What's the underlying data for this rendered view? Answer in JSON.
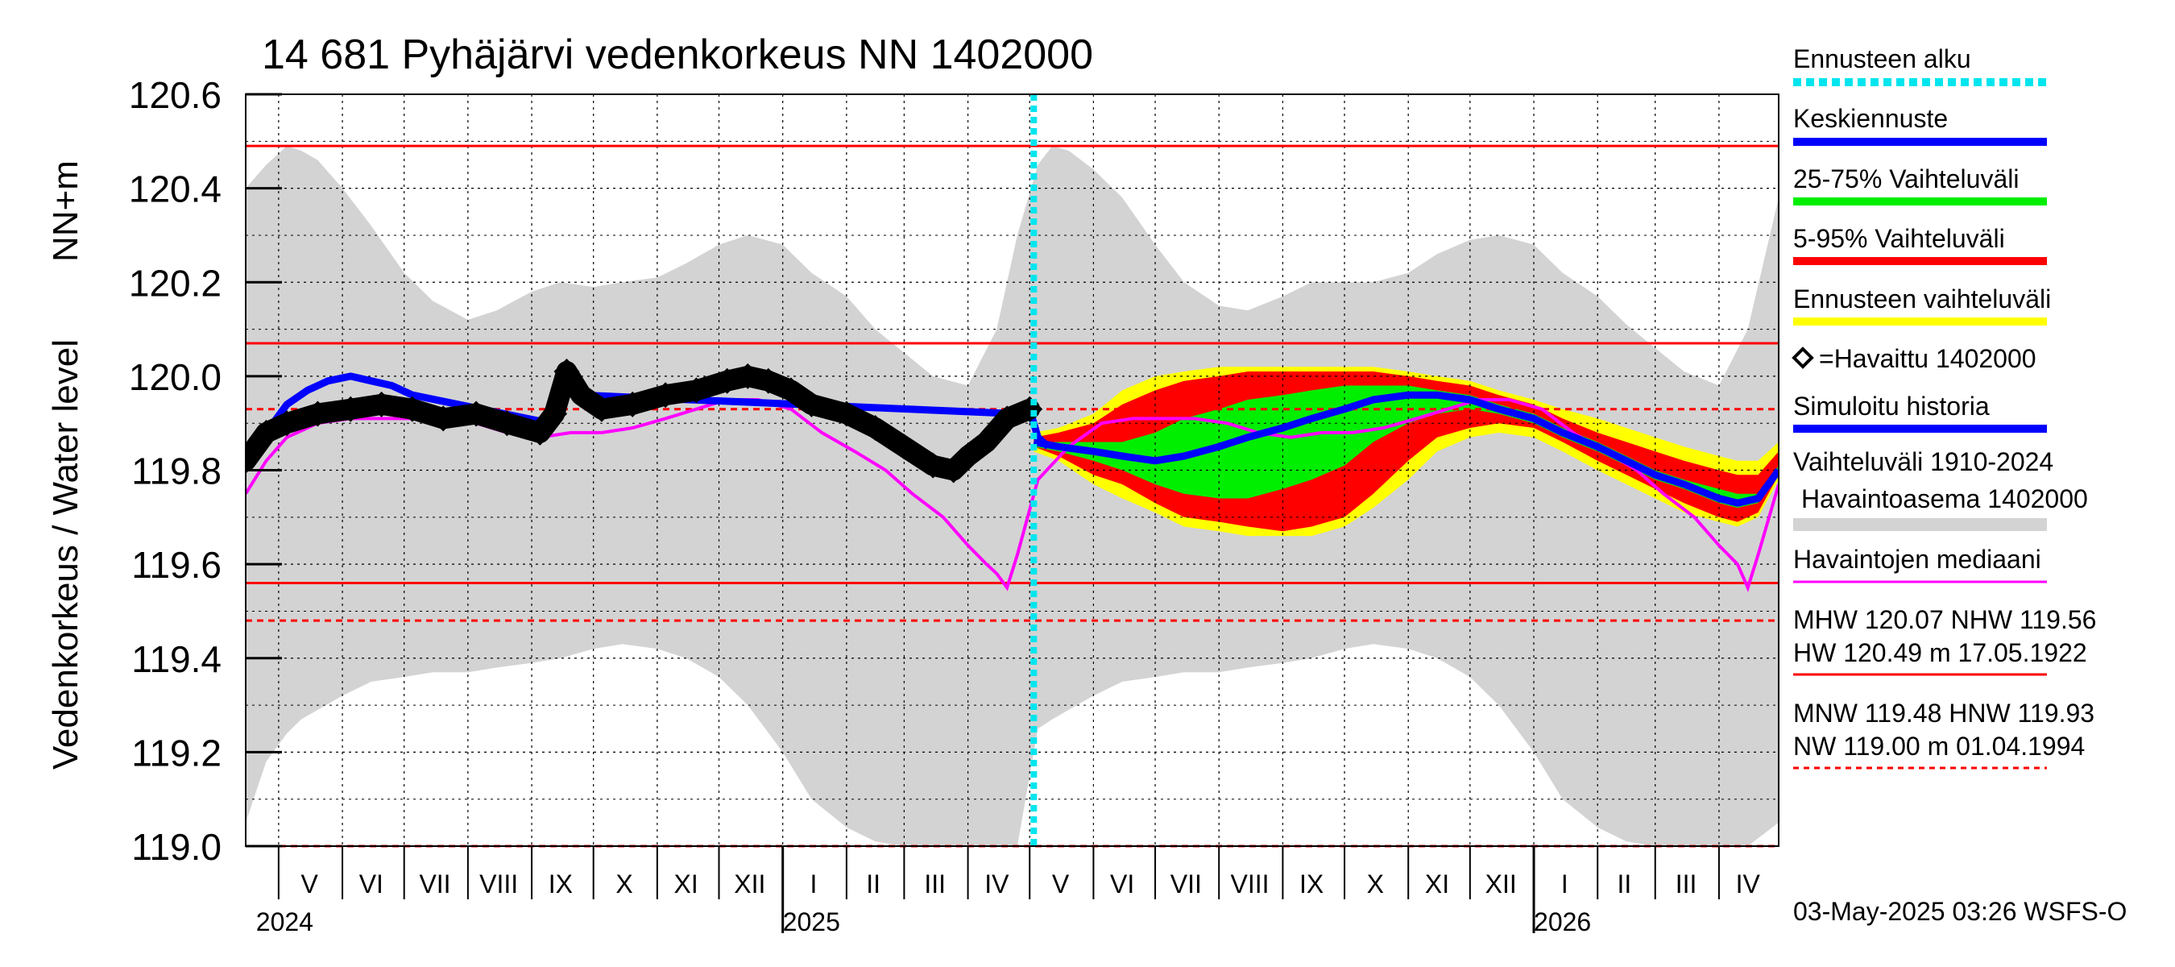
{
  "chart_data": {
    "type": "area",
    "title": "14 681 Pyhäjärvi vedenkorkeus NN 1402000",
    "ylabel_left": "Vedenkorkeus / Water level",
    "ylabel_unit": "NN+m",
    "ylim": [
      119.0,
      120.6
    ],
    "yticks": [
      "120.6",
      "120.4",
      "120.2",
      "120.0",
      "119.8",
      "119.6",
      "119.4",
      "119.2",
      "119.0"
    ],
    "ytick_values": [
      120.6,
      120.4,
      120.2,
      120.0,
      119.8,
      119.6,
      119.4,
      119.2,
      119.0
    ],
    "x_start": "2024-04-15",
    "x_end": "2026-04-30",
    "forecast_start": "2025-05-03",
    "month_labels": [
      {
        "label": "V",
        "mid": "2024-05-16"
      },
      {
        "label": "VI",
        "mid": "2024-06-15"
      },
      {
        "label": "VII",
        "mid": "2024-07-16"
      },
      {
        "label": "VIII",
        "mid": "2024-08-16"
      },
      {
        "label": "IX",
        "mid": "2024-09-15"
      },
      {
        "label": "X",
        "mid": "2024-10-16"
      },
      {
        "label": "XI",
        "mid": "2024-11-15"
      },
      {
        "label": "XII",
        "mid": "2024-12-16"
      },
      {
        "label": "I",
        "mid": "2025-01-16"
      },
      {
        "label": "II",
        "mid": "2025-02-14"
      },
      {
        "label": "III",
        "mid": "2025-03-16"
      },
      {
        "label": "IV",
        "mid": "2025-04-15"
      },
      {
        "label": "V",
        "mid": "2025-05-16"
      },
      {
        "label": "VI",
        "mid": "2025-06-15"
      },
      {
        "label": "VII",
        "mid": "2025-07-16"
      },
      {
        "label": "VIII",
        "mid": "2025-08-16"
      },
      {
        "label": "IX",
        "mid": "2025-09-15"
      },
      {
        "label": "X",
        "mid": "2025-10-16"
      },
      {
        "label": "XI",
        "mid": "2025-11-15"
      },
      {
        "label": "XII",
        "mid": "2025-12-16"
      },
      {
        "label": "I",
        "mid": "2026-01-16"
      },
      {
        "label": "II",
        "mid": "2026-02-14"
      },
      {
        "label": "III",
        "mid": "2026-03-16"
      },
      {
        "label": "IV",
        "mid": "2026-04-15"
      }
    ],
    "month_boundaries": [
      "2024-05-01",
      "2024-06-01",
      "2024-07-01",
      "2024-08-01",
      "2024-09-01",
      "2024-10-01",
      "2024-11-01",
      "2024-12-01",
      "2025-01-01",
      "2025-02-01",
      "2025-03-01",
      "2025-04-01",
      "2025-05-01",
      "2025-06-01",
      "2025-07-01",
      "2025-08-01",
      "2025-09-01",
      "2025-10-01",
      "2025-11-01",
      "2025-12-01",
      "2026-01-01",
      "2026-02-01",
      "2026-03-01",
      "2026-04-01"
    ],
    "year_labels": [
      {
        "label": "2024",
        "date": "2024-04-20"
      },
      {
        "label": "2025",
        "date": "2025-01-01"
      },
      {
        "label": "2026",
        "date": "2026-01-01"
      }
    ],
    "year_boundaries": [
      "2025-01-01",
      "2026-01-01"
    ],
    "reference_lines": [
      {
        "name": "HW",
        "value": 120.49,
        "style": "solid"
      },
      {
        "name": "MHW",
        "value": 120.07,
        "style": "solid"
      },
      {
        "name": "HNW",
        "value": 119.93,
        "style": "dashed"
      },
      {
        "name": "NHW",
        "value": 119.56,
        "style": "solid"
      },
      {
        "name": "MNW",
        "value": 119.48,
        "style": "dashed"
      },
      {
        "name": "NW",
        "value": 119.0,
        "style": "dashed"
      }
    ],
    "history_band": {
      "x": [
        "2024-04-15",
        "2024-04-25",
        "2024-05-05",
        "2024-05-12",
        "2024-05-20",
        "2024-06-01",
        "2024-06-15",
        "2024-07-01",
        "2024-07-15",
        "2024-08-01",
        "2024-08-15",
        "2024-09-01",
        "2024-09-15",
        "2024-10-01",
        "2024-10-15",
        "2024-11-01",
        "2024-11-15",
        "2024-12-01",
        "2024-12-15",
        "2025-01-01",
        "2025-01-15",
        "2025-02-01",
        "2025-02-15",
        "2025-03-01",
        "2025-03-15",
        "2025-04-01",
        "2025-04-15",
        "2025-04-25",
        "2025-05-05",
        "2025-05-12",
        "2025-05-20",
        "2025-06-01",
        "2025-06-15",
        "2025-07-01",
        "2025-07-15",
        "2025-08-01",
        "2025-08-15",
        "2025-09-01",
        "2025-09-15",
        "2025-10-01",
        "2025-10-15",
        "2025-11-01",
        "2025-11-15",
        "2025-12-01",
        "2025-12-15",
        "2026-01-01",
        "2026-01-15",
        "2026-02-01",
        "2026-02-15",
        "2026-03-01",
        "2026-03-15",
        "2026-04-01",
        "2026-04-15",
        "2026-04-30"
      ],
      "upper": [
        120.4,
        120.45,
        120.49,
        120.48,
        120.46,
        120.4,
        120.32,
        120.22,
        120.16,
        120.12,
        120.14,
        120.18,
        120.2,
        120.19,
        120.2,
        120.21,
        120.24,
        120.28,
        120.3,
        120.28,
        120.22,
        120.17,
        120.1,
        120.05,
        120.0,
        119.98,
        120.1,
        120.3,
        120.45,
        120.49,
        120.48,
        120.44,
        120.38,
        120.28,
        120.2,
        120.15,
        120.14,
        120.17,
        120.2,
        120.2,
        120.2,
        120.22,
        120.26,
        120.29,
        120.3,
        120.28,
        120.22,
        120.17,
        120.11,
        120.06,
        120.01,
        119.98,
        120.1,
        120.38
      ],
      "lower": [
        119.05,
        119.18,
        119.24,
        119.27,
        119.29,
        119.32,
        119.35,
        119.36,
        119.37,
        119.37,
        119.38,
        119.39,
        119.4,
        119.42,
        119.43,
        119.42,
        119.4,
        119.36,
        119.3,
        119.2,
        119.1,
        119.04,
        119.01,
        119.0,
        119.0,
        119.0,
        119.0,
        119.0,
        119.25,
        119.27,
        119.29,
        119.32,
        119.35,
        119.36,
        119.37,
        119.37,
        119.38,
        119.39,
        119.4,
        119.42,
        119.43,
        119.42,
        119.4,
        119.36,
        119.3,
        119.2,
        119.1,
        119.04,
        119.01,
        119.0,
        119.0,
        119.0,
        119.0,
        119.05
      ]
    },
    "forecast_bands": {
      "x": [
        "2025-05-03",
        "2025-05-15",
        "2025-06-01",
        "2025-06-15",
        "2025-07-01",
        "2025-07-15",
        "2025-08-01",
        "2025-08-15",
        "2025-09-01",
        "2025-09-15",
        "2025-10-01",
        "2025-10-15",
        "2025-11-01",
        "2025-11-15",
        "2025-12-01",
        "2025-12-15",
        "2026-01-01",
        "2026-01-15",
        "2026-02-01",
        "2026-02-15",
        "2026-03-01",
        "2026-03-15",
        "2026-04-01",
        "2026-04-10",
        "2026-04-20",
        "2026-04-30"
      ],
      "p0": [
        119.84,
        119.82,
        119.77,
        119.74,
        119.71,
        119.68,
        119.67,
        119.66,
        119.66,
        119.66,
        119.68,
        119.72,
        119.78,
        119.84,
        119.87,
        119.88,
        119.87,
        119.84,
        119.8,
        119.77,
        119.74,
        119.71,
        119.69,
        119.68,
        119.7,
        119.78
      ],
      "p5": [
        119.85,
        119.83,
        119.79,
        119.77,
        119.73,
        119.7,
        119.69,
        119.68,
        119.67,
        119.68,
        119.7,
        119.75,
        119.82,
        119.87,
        119.89,
        119.9,
        119.89,
        119.86,
        119.82,
        119.79,
        119.76,
        119.73,
        119.7,
        119.69,
        119.71,
        119.79
      ],
      "p25": [
        119.85,
        119.84,
        119.82,
        119.8,
        119.77,
        119.75,
        119.74,
        119.74,
        119.76,
        119.78,
        119.81,
        119.86,
        119.9,
        119.92,
        119.93,
        119.92,
        119.9,
        119.87,
        119.84,
        119.81,
        119.78,
        119.76,
        119.73,
        119.72,
        119.73,
        119.8
      ],
      "p50": [
        119.86,
        119.85,
        119.84,
        119.83,
        119.82,
        119.83,
        119.85,
        119.87,
        119.89,
        119.91,
        119.93,
        119.95,
        119.96,
        119.96,
        119.95,
        119.93,
        119.91,
        119.88,
        119.85,
        119.82,
        119.79,
        119.77,
        119.74,
        119.73,
        119.74,
        119.8
      ],
      "p75": [
        119.86,
        119.86,
        119.86,
        119.86,
        119.88,
        119.91,
        119.93,
        119.95,
        119.96,
        119.97,
        119.98,
        119.98,
        119.98,
        119.97,
        119.96,
        119.94,
        119.92,
        119.89,
        119.86,
        119.83,
        119.8,
        119.78,
        119.76,
        119.75,
        119.75,
        119.81
      ],
      "p95": [
        119.87,
        119.88,
        119.9,
        119.94,
        119.97,
        119.99,
        120.0,
        120.01,
        120.01,
        120.01,
        120.01,
        120.01,
        120.0,
        119.99,
        119.98,
        119.96,
        119.94,
        119.91,
        119.88,
        119.86,
        119.84,
        119.82,
        119.8,
        119.79,
        119.79,
        119.84
      ],
      "p100": [
        119.88,
        119.89,
        119.92,
        119.97,
        120.0,
        120.01,
        120.02,
        120.02,
        120.02,
        120.02,
        120.02,
        120.02,
        120.01,
        120.0,
        119.99,
        119.97,
        119.95,
        119.93,
        119.91,
        119.89,
        119.87,
        119.85,
        119.83,
        119.82,
        119.82,
        119.86
      ]
    },
    "observed": {
      "name": "Havaittu 1402000",
      "x": [
        "2024-04-15",
        "2024-04-25",
        "2024-05-05",
        "2024-05-20",
        "2024-06-05",
        "2024-06-20",
        "2024-07-05",
        "2024-07-20",
        "2024-08-05",
        "2024-08-20",
        "2024-09-05",
        "2024-09-12",
        "2024-09-18",
        "2024-09-25",
        "2024-10-05",
        "2024-10-20",
        "2024-11-05",
        "2024-11-20",
        "2024-12-05",
        "2024-12-15",
        "2024-12-25",
        "2025-01-05",
        "2025-01-15",
        "2025-02-01",
        "2025-02-15",
        "2025-03-01",
        "2025-03-15",
        "2025-03-25",
        "2025-04-01",
        "2025-04-10",
        "2025-04-20",
        "2025-05-01"
      ],
      "y": [
        119.82,
        119.88,
        119.9,
        119.92,
        119.93,
        119.94,
        119.93,
        119.91,
        119.92,
        119.9,
        119.88,
        119.92,
        120.01,
        119.96,
        119.93,
        119.94,
        119.96,
        119.97,
        119.99,
        120.0,
        119.99,
        119.97,
        119.94,
        119.92,
        119.89,
        119.85,
        119.81,
        119.8,
        119.83,
        119.86,
        119.91,
        119.93
      ]
    },
    "simulated": {
      "name": "Simuloitu historia",
      "x": [
        "2024-04-15",
        "2024-04-25",
        "2024-05-05",
        "2024-05-15",
        "2024-05-25",
        "2024-06-05",
        "2024-06-15",
        "2024-06-25",
        "2024-07-05",
        "2024-09-10",
        "2024-09-15",
        "2024-09-20",
        "2024-09-25",
        "2025-04-25",
        "2025-05-01",
        "2025-05-05",
        "2025-05-10"
      ],
      "y": [
        119.82,
        119.88,
        119.94,
        119.97,
        119.99,
        120.0,
        119.99,
        119.98,
        119.96,
        119.9,
        119.96,
        119.99,
        119.96,
        119.92,
        119.93,
        119.87,
        119.85
      ]
    },
    "median_forecast": {
      "name": "Keskiennuste",
      "x": [
        "2025-05-03",
        "2025-05-15",
        "2025-06-01",
        "2025-06-15",
        "2025-07-01",
        "2025-07-15",
        "2025-08-01",
        "2025-08-15",
        "2025-09-01",
        "2025-09-15",
        "2025-10-01",
        "2025-10-15",
        "2025-11-01",
        "2025-11-15",
        "2025-12-01",
        "2025-12-15",
        "2026-01-01",
        "2026-01-15",
        "2026-02-01",
        "2026-02-15",
        "2026-03-01",
        "2026-03-15",
        "2026-04-01",
        "2026-04-10",
        "2026-04-20",
        "2026-04-30"
      ],
      "y": [
        119.86,
        119.85,
        119.84,
        119.83,
        119.82,
        119.83,
        119.85,
        119.87,
        119.89,
        119.91,
        119.93,
        119.95,
        119.96,
        119.96,
        119.95,
        119.93,
        119.91,
        119.88,
        119.85,
        119.82,
        119.79,
        119.77,
        119.74,
        119.73,
        119.74,
        119.8
      ]
    },
    "obs_median": {
      "name": "Havaintojen mediaani",
      "x": [
        "2024-04-15",
        "2024-04-25",
        "2024-05-05",
        "2024-05-20",
        "2024-06-05",
        "2024-06-20",
        "2024-07-05",
        "2024-07-20",
        "2024-08-05",
        "2024-08-20",
        "2024-09-05",
        "2024-09-20",
        "2024-10-05",
        "2024-10-20",
        "2024-11-05",
        "2024-11-20",
        "2024-12-05",
        "2024-12-20",
        "2025-01-05",
        "2025-01-20",
        "2025-02-05",
        "2025-02-20",
        "2025-03-05",
        "2025-03-20",
        "2025-04-01",
        "2025-04-10",
        "2025-04-15",
        "2025-04-20",
        "2025-04-25",
        "2025-05-05",
        "2025-05-20",
        "2025-06-05",
        "2025-06-20",
        "2025-07-05",
        "2025-07-20",
        "2025-08-05",
        "2025-08-20",
        "2025-09-05",
        "2025-09-20",
        "2025-10-05",
        "2025-10-20",
        "2025-11-05",
        "2025-11-20",
        "2025-12-05",
        "2025-12-20",
        "2026-01-05",
        "2026-01-20",
        "2026-02-05",
        "2026-02-20",
        "2026-03-05",
        "2026-03-20",
        "2026-04-01",
        "2026-04-10",
        "2026-04-15",
        "2026-04-20",
        "2026-04-30"
      ],
      "y": [
        119.75,
        119.82,
        119.87,
        119.9,
        119.91,
        119.91,
        119.91,
        119.91,
        119.9,
        119.88,
        119.87,
        119.88,
        119.88,
        119.89,
        119.91,
        119.93,
        119.95,
        119.95,
        119.93,
        119.88,
        119.84,
        119.8,
        119.75,
        119.7,
        119.64,
        119.6,
        119.58,
        119.55,
        119.62,
        119.78,
        119.85,
        119.9,
        119.91,
        119.91,
        119.91,
        119.9,
        119.88,
        119.87,
        119.88,
        119.88,
        119.89,
        119.91,
        119.93,
        119.95,
        119.95,
        119.93,
        119.88,
        119.84,
        119.8,
        119.75,
        119.7,
        119.64,
        119.6,
        119.55,
        119.62,
        119.77
      ]
    },
    "legend": [
      {
        "key": "ennusteen_alku",
        "label": "Ennusteen alku",
        "color": "#00e5ee",
        "style": "dotted"
      },
      {
        "key": "keskiennuste",
        "label": "Keskiennuste",
        "color": "#0000ff",
        "style": "solid"
      },
      {
        "key": "p25_75",
        "label": "25-75% Vaihteluväli",
        "color": "#00ee00",
        "style": "solid"
      },
      {
        "key": "p5_95",
        "label": "5-95% Vaihteluväli",
        "color": "#ff0000",
        "style": "solid"
      },
      {
        "key": "ennusteen_vaihteluvali",
        "label": "Ennusteen vaihteluväli",
        "color": "#ffff00",
        "style": "solid"
      },
      {
        "key": "havaittu",
        "label": "=Havaittu 1402000",
        "color": "#000000",
        "style": "diamond"
      },
      {
        "key": "simuloitu",
        "label": "Simuloitu historia",
        "color": "#0000ff",
        "style": "solid"
      },
      {
        "key": "vaihteluvali",
        "label": "Vaihteluväli 1910-2024",
        "label2": "Havaintoasema 1402000",
        "color": "#d3d3d3",
        "style": "solid"
      },
      {
        "key": "mediaani",
        "label": "Havaintojen mediaani",
        "color": "#ff00ff",
        "style": "solid"
      },
      {
        "key": "mhw",
        "label": "MHW 120.07 NHW 119.56",
        "label2": "HW 120.49 m 17.05.1922",
        "color": "#ff0000",
        "style": "solid"
      },
      {
        "key": "mnw",
        "label": "MNW 119.48 HNW 119.93",
        "label2": "NW 119.00 m 01.04.1994",
        "color": "#ff0000",
        "style": "dashed"
      }
    ],
    "footer": "03-May-2025 03:26 WSFS-O",
    "colors": {
      "grey_band": "#d3d3d3",
      "yellow": "#ffff00",
      "red": "#ff0000",
      "green": "#00ee00",
      "blue": "#0000ff",
      "magenta": "#ff00ff",
      "cyan": "#00e5ee",
      "black": "#000000"
    }
  }
}
